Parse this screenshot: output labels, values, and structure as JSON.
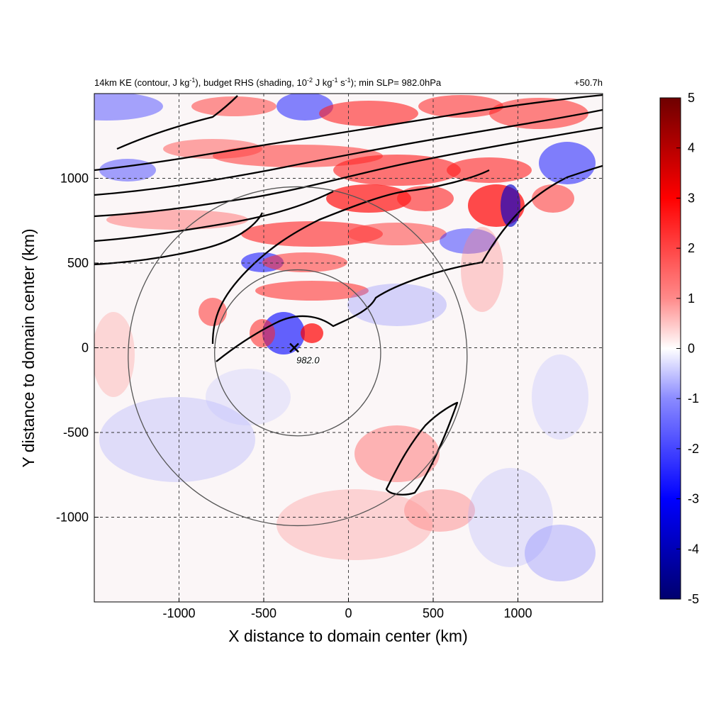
{
  "chart_data": {
    "type": "heatmap",
    "title_main": "14km KE (contour, J kg",
    "title_sup1": "-1",
    "title_mid": "), budget RHS (shading, 10",
    "title_sup2": "-2",
    "title_mid2": " J kg",
    "title_sup3": "-1",
    "title_mid3": " s",
    "title_sup4": "-1",
    "title_end": "); min SLP= 982.0hPa",
    "time_label": "+50.7h",
    "xlabel": "X distance to domain center (km)",
    "ylabel": "Y distance to domain center (km)",
    "xlim": [
      -1500,
      1500
    ],
    "ylim": [
      -1500,
      1500
    ],
    "x_ticks": [
      -1000,
      -500,
      0,
      500,
      1000
    ],
    "x_tick_labels": [
      "-1000",
      "-500",
      "0",
      "500",
      "1000"
    ],
    "y_ticks": [
      -1000,
      -500,
      0,
      500,
      1000
    ],
    "y_tick_labels": [
      "-1000",
      "-500",
      "0",
      "500",
      "1000"
    ],
    "grid": true,
    "colorbar": {
      "min": -5,
      "max": 5,
      "ticks": [
        5,
        4,
        3,
        2,
        1,
        0,
        -1,
        -2,
        -3,
        -4,
        -5
      ],
      "tick_labels": [
        "5",
        "4",
        "3",
        "2",
        "1",
        "0",
        "-1",
        "-2",
        "-3",
        "-4",
        "-5"
      ],
      "colors": [
        "#00007a",
        "#0000ff",
        "#8080ff",
        "#ffffff",
        "#ff8080",
        "#ff0000",
        "#7a0000"
      ]
    },
    "storm_center": {
      "x": -320,
      "y": 0,
      "label": "982.0"
    },
    "rings": [
      {
        "cx": -300,
        "cy": -30,
        "r": 490
      },
      {
        "cx": -300,
        "cy": -50,
        "r": 1000
      }
    ]
  }
}
